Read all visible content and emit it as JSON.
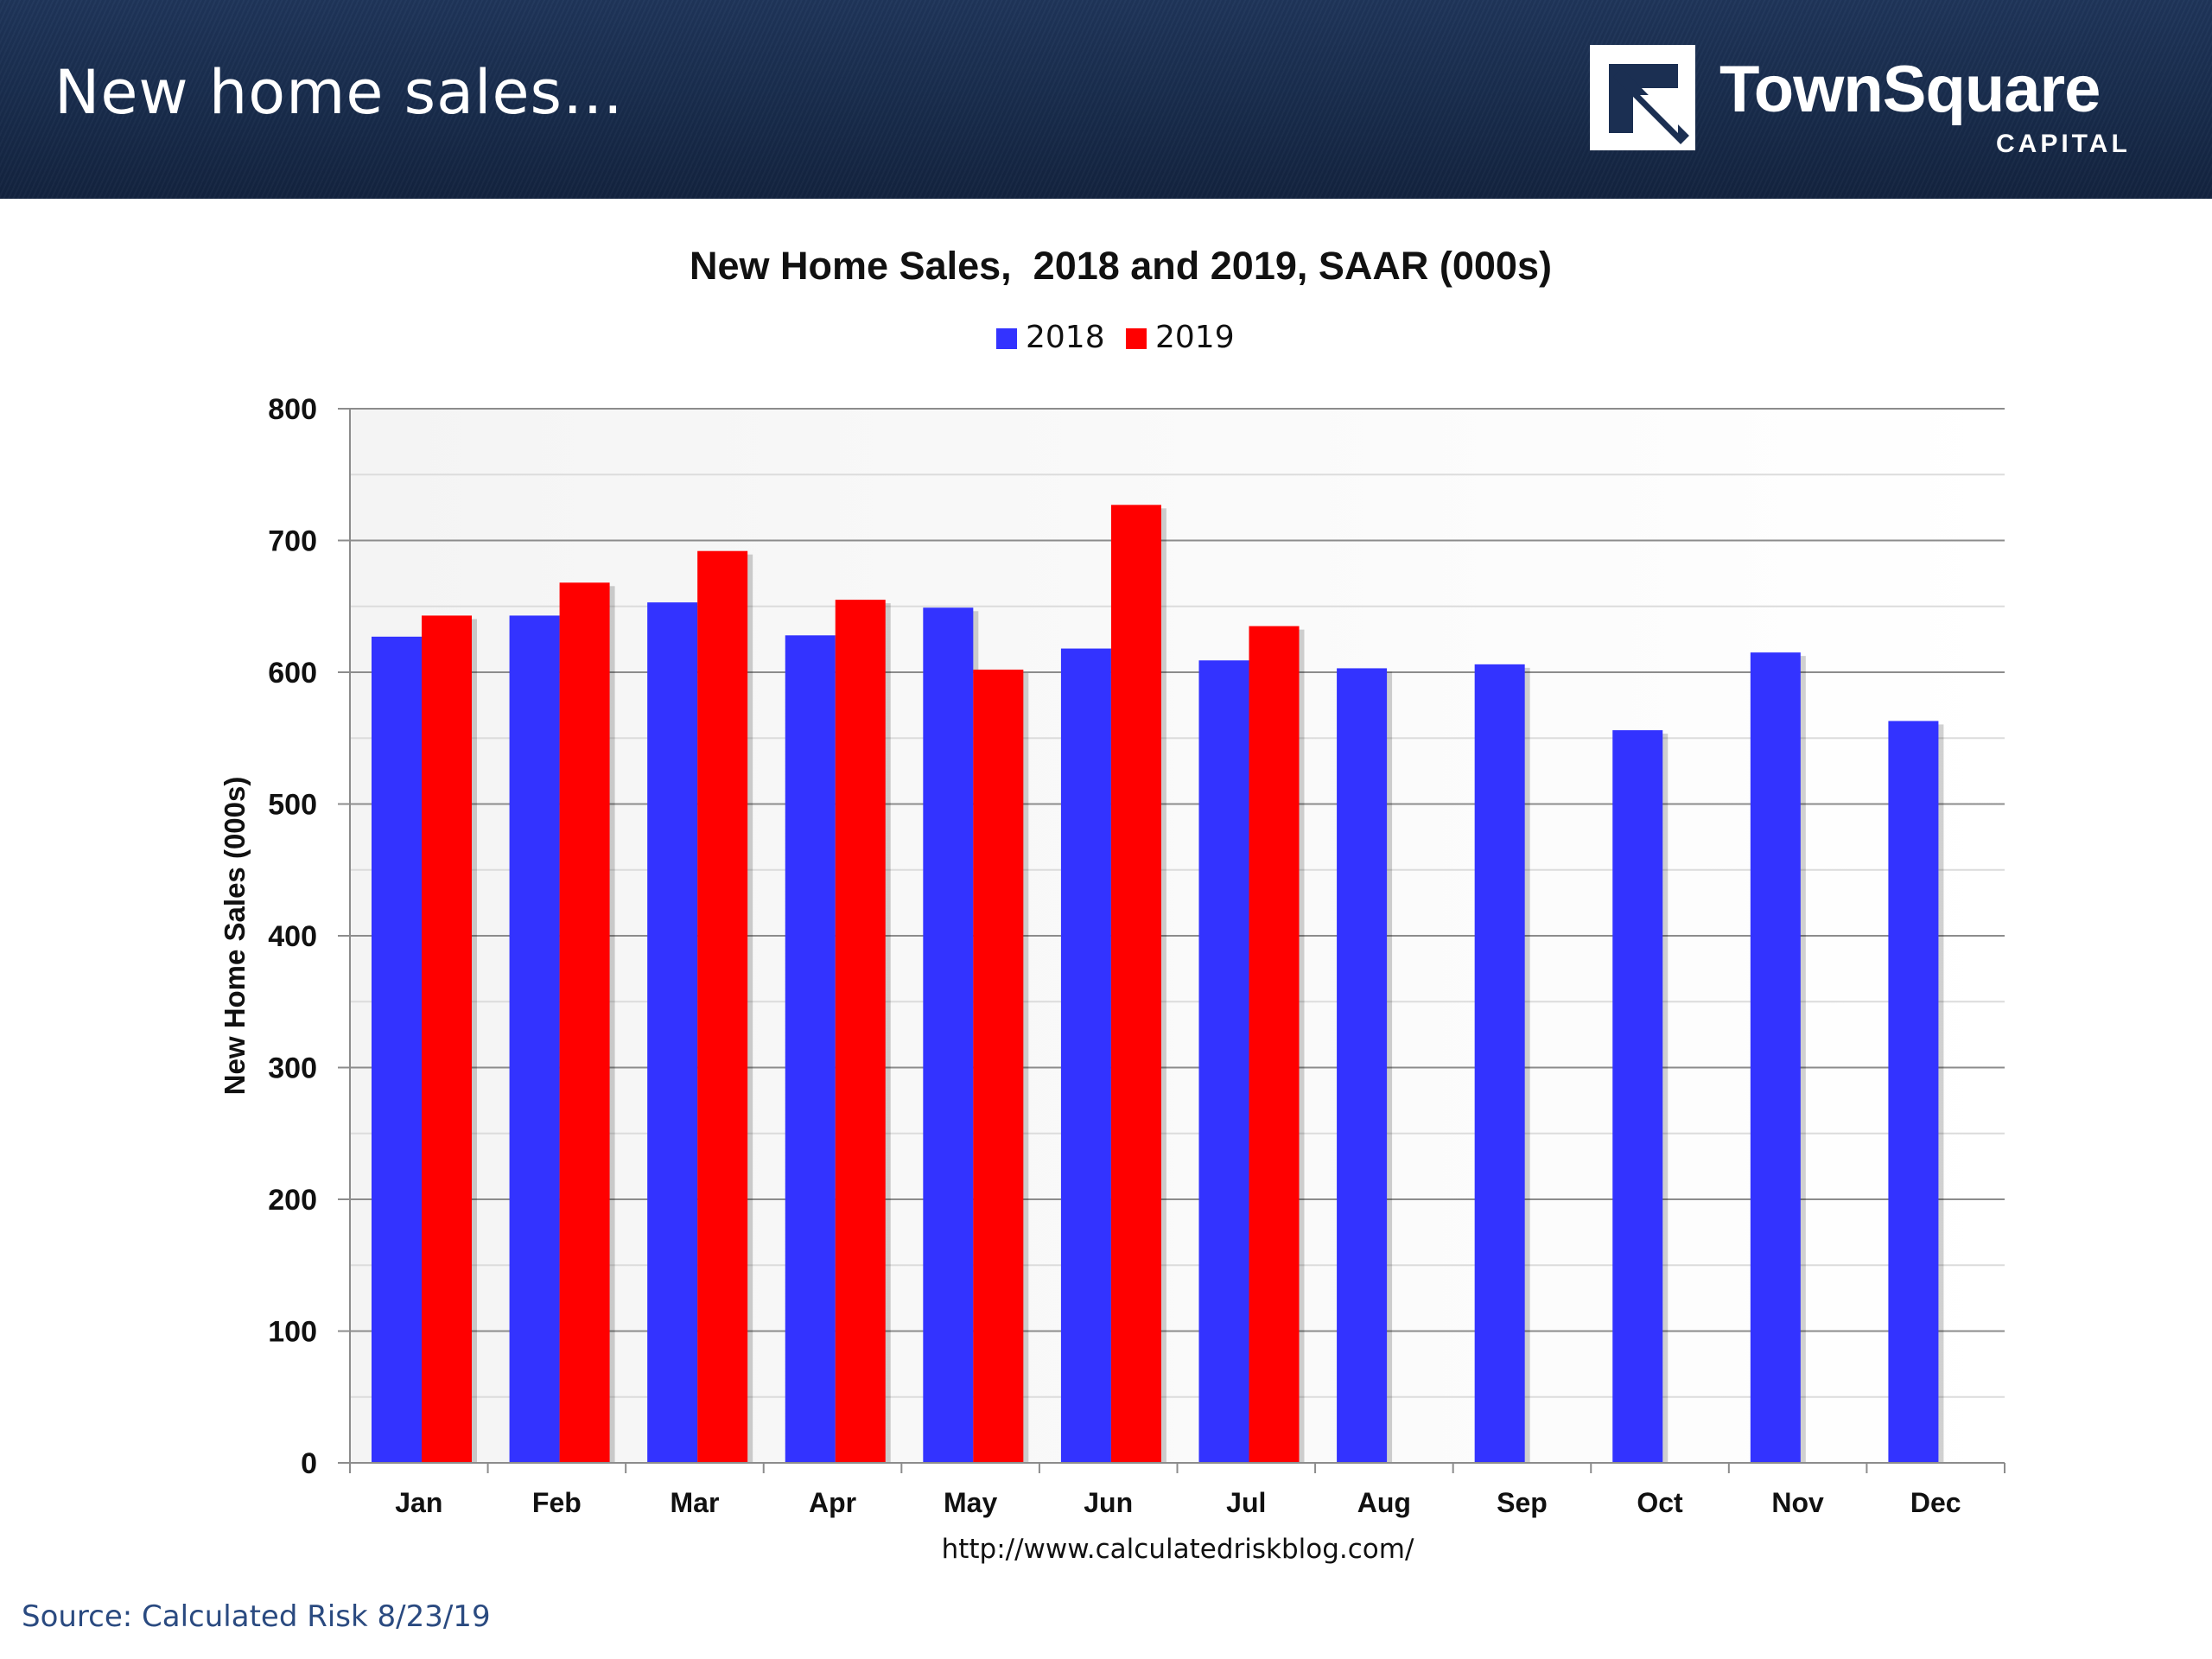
{
  "header": {
    "title": "New home sales…",
    "logo_name": "TownSquare",
    "logo_sub": "CAPITAL"
  },
  "footer": {
    "source": "Source: Calculated Risk 8/23/19"
  },
  "chart_data": {
    "type": "bar",
    "title": "New Home Sales,  2018 and 2019, SAAR (000s)",
    "xlabel": "",
    "ylabel": "New Home Sales (000s)",
    "url_note": "http://www.calculatedriskblog.com/",
    "categories": [
      "Jan",
      "Feb",
      "Mar",
      "Apr",
      "May",
      "Jun",
      "Jul",
      "Aug",
      "Sep",
      "Oct",
      "Nov",
      "Dec"
    ],
    "series": [
      {
        "name": "2018",
        "color": "#3333ff",
        "values": [
          627,
          643,
          653,
          628,
          649,
          618,
          609,
          603,
          606,
          556,
          615,
          563
        ]
      },
      {
        "name": "2019",
        "color": "#ff0000",
        "values": [
          643,
          668,
          692,
          655,
          602,
          727,
          635,
          null,
          null,
          null,
          null,
          null
        ]
      }
    ],
    "ylim": [
      0,
      800
    ],
    "yticks": [
      0,
      100,
      200,
      300,
      400,
      500,
      600,
      700,
      800
    ],
    "grid": true,
    "legend_position": "top-center"
  }
}
